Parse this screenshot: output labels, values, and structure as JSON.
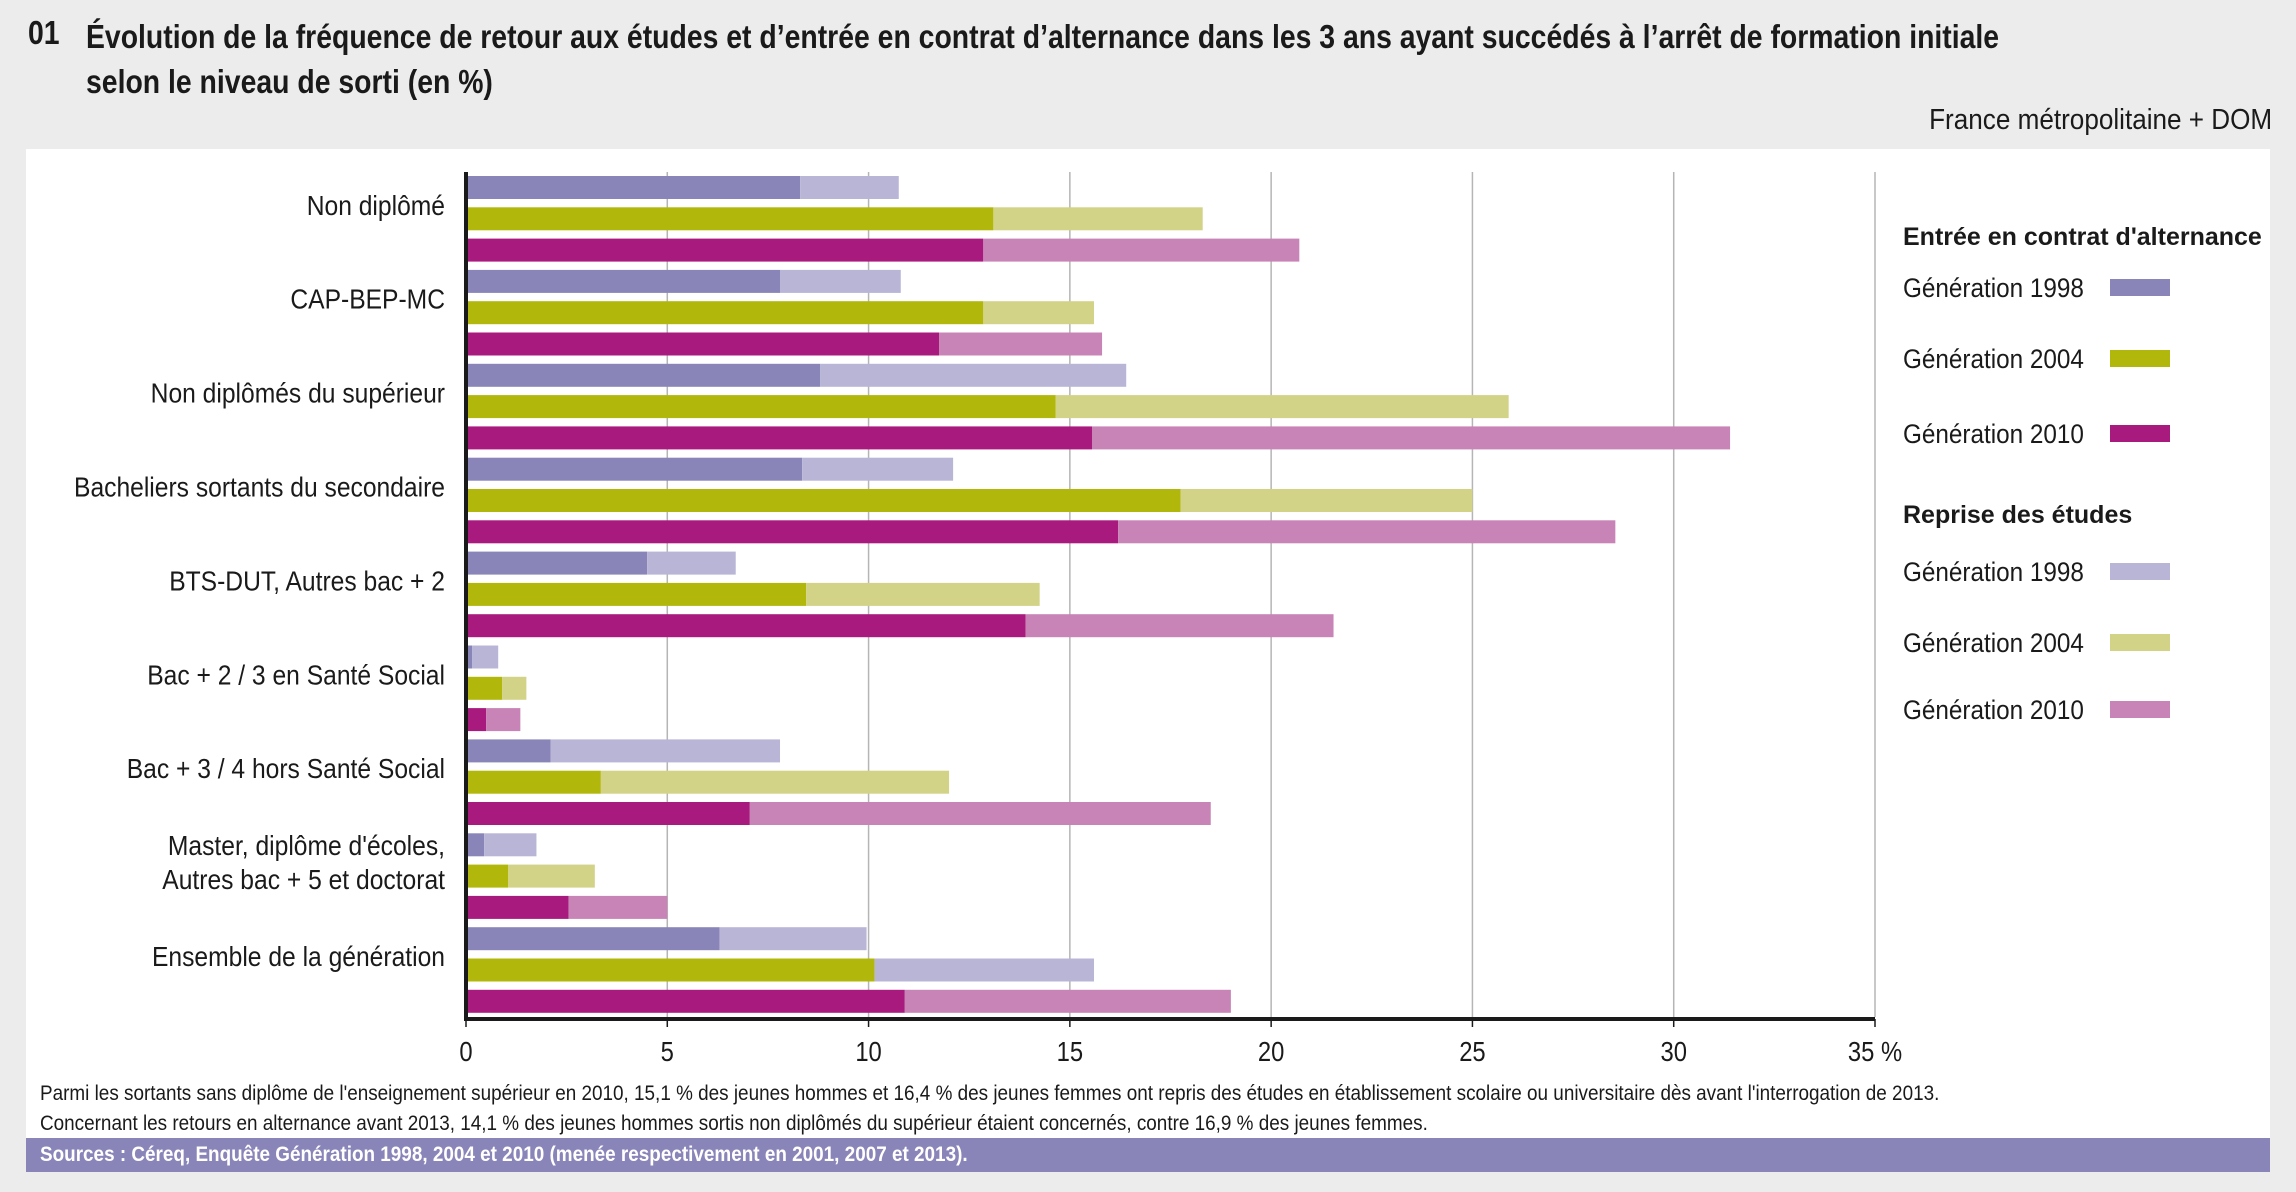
{
  "header": {
    "number": "01",
    "title_line1": "Évolution de la fréquence de retour aux études et d’entrée en contrat d’alternance dans les 3 ans ayant succédés à l’arrêt de formation initiale",
    "title_line2": "selon le niveau de sorti (en %)",
    "scope": "France métropolitaine + DOM"
  },
  "chart_data": {
    "type": "bar",
    "orientation": "horizontal",
    "stacked": true,
    "title": "Évolution de la fréquence de retour aux études et d’entrée en contrat d’alternance dans les 3 ans ayant succédés à l’arrêt de formation initiale selon le niveau de sorti (en %)",
    "xlabel": "",
    "ylabel": "",
    "xlim": [
      0,
      35
    ],
    "xticks": [
      0,
      5,
      10,
      15,
      20,
      25,
      30,
      35
    ],
    "xtick_labels": [
      "0",
      "5",
      "10",
      "15",
      "20",
      "25",
      "30",
      "35 %"
    ],
    "grid": true,
    "legend_position": "right",
    "categories": [
      "Non diplômé",
      "CAP-BEP-MC",
      "Non diplômés du supérieur",
      "Bacheliers sortants du secondaire",
      "BTS-DUT, Autres bac + 2",
      "Bac + 2 / 3 en Santé Social",
      "Bac + 3 / 4 hors Santé Social",
      "Master, diplôme d'écoles, Autres bac + 5 et doctorat",
      "Ensemble de la génération"
    ],
    "category_lines": [
      [
        "Non diplômé"
      ],
      [
        "CAP-BEP-MC"
      ],
      [
        "Non diplômés du supérieur"
      ],
      [
        "Bacheliers sortants du secondaire"
      ],
      [
        "BTS-DUT, Autres bac + 2"
      ],
      [
        "Bac + 2 / 3 en Santé Social"
      ],
      [
        "Bac + 3 / 4 hors Santé Social"
      ],
      [
        "Master, diplôme d'écoles,",
        "Autres bac + 5 et doctorat"
      ],
      [
        "Ensemble de la génération"
      ]
    ],
    "generations": [
      "Génération 1998",
      "Génération 2004",
      "Génération 2010"
    ],
    "series": [
      {
        "name": "Entrée en contrat d'alternance",
        "generation": "Génération 1998",
        "color": "#8985b9",
        "values": [
          8.3,
          7.8,
          8.8,
          8.35,
          4.5,
          0.15,
          2.1,
          0.45,
          6.3
        ]
      },
      {
        "name": "Reprise des études",
        "generation": "Génération 1998",
        "color": "#b8b5d7",
        "values": [
          2.45,
          3.0,
          7.6,
          3.75,
          2.2,
          0.65,
          5.7,
          1.3,
          3.65
        ]
      },
      {
        "name": "Entrée en contrat d'alternance",
        "generation": "Génération 2004",
        "color": "#b1b80b",
        "values": [
          13.1,
          12.85,
          14.65,
          17.75,
          8.45,
          0.9,
          3.35,
          1.05,
          10.15
        ]
      },
      {
        "name": "Reprise des études",
        "generation": "Génération 2004",
        "color": "#d2d386",
        "values": [
          5.2,
          2.75,
          11.25,
          7.25,
          5.8,
          0.6,
          8.65,
          2.15,
          5.45
        ]
      },
      {
        "name": "Entrée en contrat d'alternance",
        "generation": "Génération 2010",
        "color": "#a91a7f",
        "values": [
          12.85,
          11.75,
          15.55,
          16.2,
          13.9,
          0.5,
          7.05,
          2.55,
          10.9
        ]
      },
      {
        "name": "Reprise des études",
        "generation": "Génération 2010",
        "color": "#c884b6",
        "values": [
          7.85,
          4.05,
          15.85,
          12.35,
          7.65,
          0.85,
          11.45,
          2.45,
          8.1
        ]
      }
    ],
    "overrides": [
      {
        "category": "Ensemble de la génération",
        "generation": "Génération 2004",
        "segment": "Reprise des études",
        "color": "#b8b5d7"
      }
    ]
  },
  "legend": {
    "groups": [
      {
        "heading": "Entrée en contrat d'alternance",
        "items": [
          {
            "label": "Génération 1998",
            "color": "#8985b9"
          },
          {
            "label": "Génération 2004",
            "color": "#b1b80b"
          },
          {
            "label": "Génération 2010",
            "color": "#a91a7f"
          }
        ]
      },
      {
        "heading": "Reprise des études",
        "items": [
          {
            "label": "Génération 1998",
            "color": "#b8b5d7"
          },
          {
            "label": "Génération 2004",
            "color": "#d2d386"
          },
          {
            "label": "Génération 2010",
            "color": "#c884b6"
          }
        ]
      }
    ]
  },
  "notes": {
    "line1": "Parmi les sortants sans diplôme de l'enseignement supérieur en 2010, 15,1 % des jeunes hommes et 16,4 % des jeunes femmes ont repris des études en établissement scolaire ou universitaire dès avant l'interrogation de 2013.",
    "line2": "Concernant les retours en alternance avant 2013, 14,1 % des jeunes hommes sortis non diplômés du supérieur étaient concernés, contre 16,9 % des jeunes femmes.",
    "sources": "Sources : Céreq, Enquête Génération 1998, 2004 et 2010 (menée respectivement en 2001, 2007 et 2013)."
  }
}
